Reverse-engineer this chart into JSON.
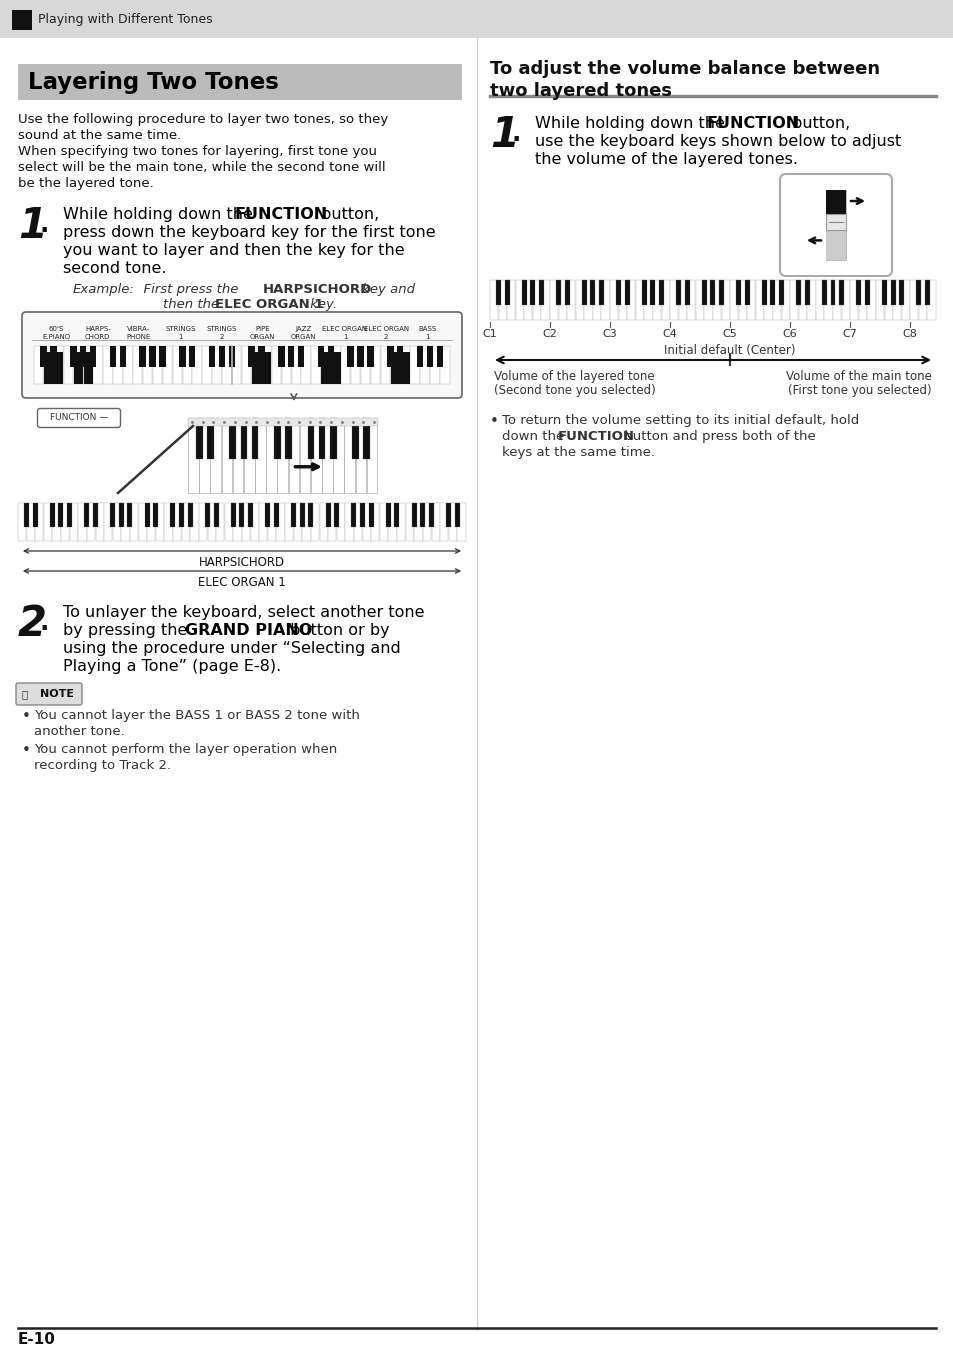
{
  "page_bg": "#ffffff",
  "header_bg": "#d8d8d8",
  "header_text": "Playing with Different Tones",
  "header_square_color": "#111111",
  "title_box_bg": "#bbbbbb",
  "title_text": "Layering Two Tones",
  "footer_text": "E-10",
  "tone_labels": [
    [
      "60'S",
      "E.PIANO"
    ],
    [
      "HARPS-",
      "CHORD"
    ],
    [
      "VIBRA-",
      "PHONE"
    ],
    [
      "STRINGS",
      "1"
    ],
    [
      "STRINGS",
      "2"
    ],
    [
      "PIPE",
      "ORGAN"
    ],
    [
      "JAZZ",
      "ORGAN"
    ],
    [
      "ELEC ORGAN",
      "1"
    ],
    [
      "ELEC ORGAN",
      "2"
    ],
    [
      "BASS",
      "1"
    ]
  ],
  "keyboard_labels_right": [
    "C1",
    "C2",
    "C3",
    "C4",
    "C5",
    "C6",
    "C7",
    "C8"
  ],
  "initial_default_text": "Initial default (Center)",
  "vol_layered_line1": "Volume of the layered tone",
  "vol_layered_line2": "(Second tone you selected)",
  "vol_main_line1": "Volume of the main tone",
  "vol_main_line2": "(First tone you selected)"
}
